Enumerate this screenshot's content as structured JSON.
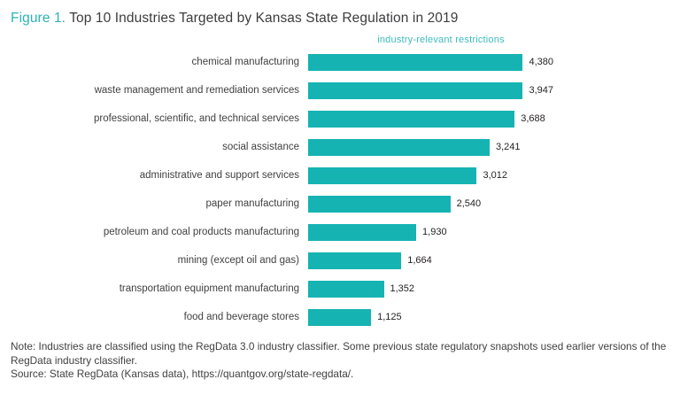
{
  "title": {
    "prefix": "Figure 1.",
    "text": " Top 10 Industries Targeted by Kansas State Regulation in 2019"
  },
  "axis_header": "industry-relevant restrictions",
  "notes": {
    "note": "Note: Industries are classified using the RegData 3.0 industry classifier. Some previous state regulatory snapshots used earlier versions of the RegData industry classifier.",
    "source": "Source: State RegData (Kansas data), https://quantgov.org/state-regdata/."
  },
  "colors": {
    "bar": "#16b3b3",
    "accent": "#2bb3b6",
    "text": "#414042"
  },
  "chart_data": {
    "type": "bar",
    "orientation": "horizontal",
    "title": "Top 10 Industries Targeted by Kansas State Regulation in 2019",
    "series_label": "industry-relevant restrictions",
    "categories": [
      "chemical manufacturing",
      "waste management and remediation services",
      "professional, scientific, and technical services",
      "social assistance",
      "administrative and support services",
      "paper manufacturing",
      "petroleum and coal products manufacturing",
      "mining (except oil and gas)",
      "transportation equipment manufacturing",
      "food and beverage stores"
    ],
    "values": [
      4380,
      3947,
      3688,
      3241,
      3012,
      2540,
      1930,
      1664,
      1352,
      1125
    ],
    "value_labels": [
      "4,380",
      "3,947",
      "3,688",
      "3,241",
      "3,012",
      "2,540",
      "1,930",
      "1,664",
      "1,352",
      "1,125"
    ],
    "xlim": [
      0,
      4380
    ],
    "grid": false,
    "legend_position": "none"
  }
}
